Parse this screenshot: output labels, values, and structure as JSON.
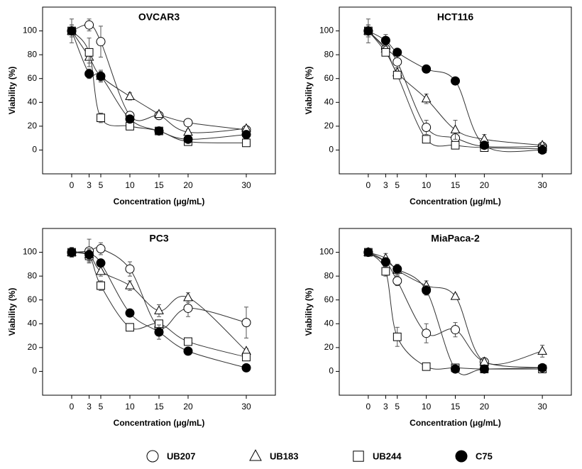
{
  "chart_data": [
    {
      "type": "scatter",
      "title": "OVCAR3",
      "x_label": "Concentration (μg/mL)",
      "y_label": "Viability (%)",
      "x": [
        0,
        3,
        5,
        10,
        15,
        20,
        30
      ],
      "xlim": [
        -5,
        35
      ],
      "ylim": [
        -20,
        120
      ],
      "xticks": [
        0,
        3,
        5,
        10,
        15,
        20,
        30
      ],
      "yticks": [
        0,
        20,
        40,
        60,
        80,
        100
      ],
      "grid": false,
      "series": [
        {
          "name": "UB207",
          "marker": "circle-open",
          "color": "#000000",
          "values": [
            100,
            105,
            91,
            29,
            29,
            23,
            17
          ],
          "errors": [
            10,
            5,
            13,
            3,
            3,
            2,
            2
          ]
        },
        {
          "name": "UB183",
          "marker": "triangle-open",
          "color": "#000000",
          "values": [
            100,
            78,
            62,
            45,
            30,
            15,
            18
          ],
          "errors": [
            5,
            5,
            5,
            3,
            2,
            2,
            2
          ]
        },
        {
          "name": "UB244",
          "marker": "square-open",
          "color": "#000000",
          "values": [
            100,
            82,
            27,
            20,
            16,
            7,
            6
          ],
          "errors": [
            5,
            12,
            4,
            2,
            2,
            2,
            2
          ]
        },
        {
          "name": "C75",
          "marker": "circle-filled",
          "color": "#000000",
          "values": [
            100,
            64,
            62,
            26,
            16,
            9,
            13
          ],
          "errors": [
            5,
            4,
            4,
            2,
            2,
            2,
            2
          ]
        }
      ]
    },
    {
      "type": "scatter",
      "title": "HCT116",
      "x_label": "Concentration (μg/mL)",
      "y_label": "Viability (%)",
      "x": [
        0,
        3,
        5,
        10,
        15,
        20,
        30
      ],
      "xlim": [
        -5,
        35
      ],
      "ylim": [
        -20,
        120
      ],
      "xticks": [
        0,
        3,
        5,
        10,
        15,
        20,
        30
      ],
      "yticks": [
        0,
        20,
        40,
        60,
        80,
        100
      ],
      "grid": false,
      "series": [
        {
          "name": "UB207",
          "marker": "circle-open",
          "color": "#000000",
          "values": [
            100,
            85,
            74,
            19,
            10,
            3,
            3
          ],
          "errors": [
            10,
            5,
            5,
            6,
            5,
            2,
            2
          ]
        },
        {
          "name": "UB183",
          "marker": "triangle-open",
          "color": "#000000",
          "values": [
            100,
            85,
            65,
            43,
            17,
            9,
            4
          ],
          "errors": [
            5,
            5,
            4,
            4,
            8,
            4,
            2
          ]
        },
        {
          "name": "UB244",
          "marker": "square-open",
          "color": "#000000",
          "values": [
            100,
            82,
            63,
            9,
            4,
            2,
            1
          ],
          "errors": [
            5,
            3,
            3,
            2,
            2,
            1,
            1
          ]
        },
        {
          "name": "C75",
          "marker": "circle-filled",
          "color": "#000000",
          "values": [
            100,
            92,
            82,
            68,
            58,
            4,
            0
          ],
          "errors": [
            5,
            5,
            3,
            3,
            2,
            2,
            1
          ]
        }
      ]
    },
    {
      "type": "scatter",
      "title": "PC3",
      "x_label": "Concentration (μg/mL)",
      "y_label": "Viability (%)",
      "x": [
        0,
        3,
        5,
        10,
        15,
        20,
        30
      ],
      "xlim": [
        -5,
        35
      ],
      "ylim": [
        -20,
        120
      ],
      "xticks": [
        0,
        3,
        5,
        10,
        15,
        20,
        30
      ],
      "yticks": [
        0,
        20,
        40,
        60,
        80,
        100
      ],
      "grid": false,
      "series": [
        {
          "name": "UB207",
          "marker": "circle-open",
          "color": "#000000",
          "values": [
            100,
            101,
            103,
            86,
            37,
            53,
            41
          ],
          "errors": [
            4,
            10,
            5,
            6,
            4,
            7,
            13
          ]
        },
        {
          "name": "UB183",
          "marker": "triangle-open",
          "color": "#000000",
          "values": [
            100,
            98,
            84,
            72,
            51,
            62,
            17
          ],
          "errors": [
            4,
            5,
            4,
            4,
            5,
            4,
            2
          ]
        },
        {
          "name": "UB244",
          "marker": "square-open",
          "color": "#000000",
          "values": [
            100,
            97,
            72,
            37,
            40,
            25,
            12
          ],
          "errors": [
            4,
            5,
            4,
            2,
            3,
            3,
            2
          ]
        },
        {
          "name": "C75",
          "marker": "circle-filled",
          "color": "#000000",
          "values": [
            100,
            98,
            91,
            49,
            33,
            17,
            3
          ],
          "errors": [
            3,
            4,
            3,
            2,
            6,
            2,
            1
          ]
        }
      ]
    },
    {
      "type": "scatter",
      "title": "MiaPaca-2",
      "x_label": "Concentration (μg/mL)",
      "y_label": "Viability (%)",
      "x": [
        0,
        3,
        5,
        10,
        15,
        20,
        30
      ],
      "xlim": [
        -5,
        35
      ],
      "ylim": [
        -20,
        120
      ],
      "xticks": [
        0,
        3,
        5,
        10,
        15,
        20,
        30
      ],
      "yticks": [
        0,
        20,
        40,
        60,
        80,
        100
      ],
      "grid": false,
      "series": [
        {
          "name": "UB207",
          "marker": "circle-open",
          "color": "#000000",
          "values": [
            100,
            92,
            76,
            32,
            35,
            8,
            3
          ],
          "errors": [
            2,
            4,
            4,
            8,
            6,
            2,
            1
          ]
        },
        {
          "name": "UB183",
          "marker": "triangle-open",
          "color": "#000000",
          "values": [
            100,
            95,
            85,
            72,
            63,
            8,
            17
          ],
          "errors": [
            2,
            4,
            4,
            4,
            2,
            2,
            5
          ]
        },
        {
          "name": "UB244",
          "marker": "square-open",
          "color": "#000000",
          "values": [
            100,
            84,
            29,
            4,
            3,
            2,
            2
          ],
          "errors": [
            2,
            4,
            8,
            1,
            2,
            1,
            1
          ]
        },
        {
          "name": "C75",
          "marker": "circle-filled",
          "color": "#000000",
          "values": [
            100,
            92,
            86,
            68,
            2,
            2,
            3
          ],
          "errors": [
            2,
            3,
            4,
            4,
            2,
            2,
            1
          ]
        }
      ]
    }
  ]
}
